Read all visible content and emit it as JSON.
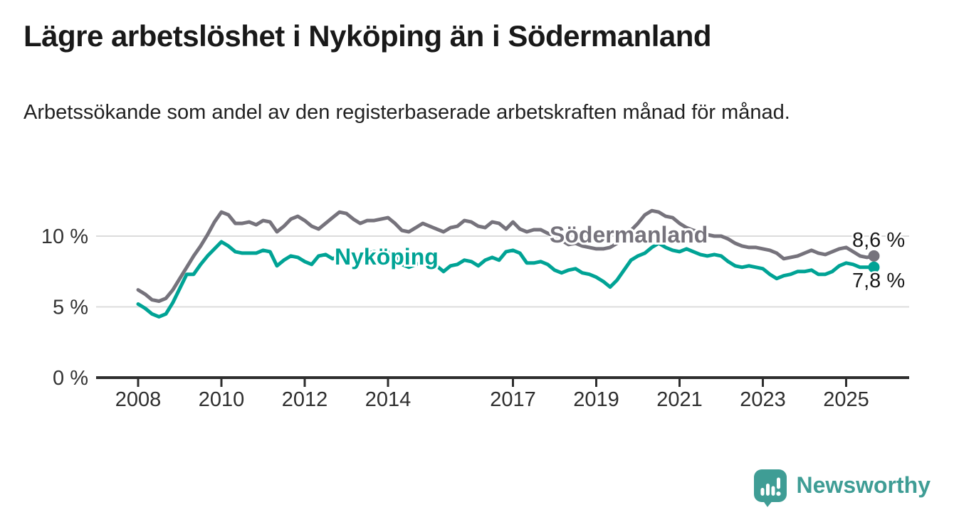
{
  "header": {
    "title": "Lägre arbetslöshet i Nyköping än i Södermanland",
    "subtitle": "Arbetssökande som andel av den registerbaserade arbetskraften månad för månad."
  },
  "branding": {
    "logo_text": "Newsworthy",
    "logo_icon": "bar-chart-speech-bubble-icon",
    "logo_color": "#3f9d95"
  },
  "chart_data": {
    "type": "line",
    "title": "Lägre arbetslöshet i Nyköping än i Södermanland",
    "xlabel": "",
    "ylabel": "",
    "x_unit": "year, monthly observations",
    "x_range": [
      2008.0,
      2025.667
    ],
    "ylim": [
      0,
      12.5
    ],
    "grid": "horizontal",
    "x_tick_years": [
      2008,
      2010,
      2012,
      2014,
      2017,
      2019,
      2021,
      2023,
      2025
    ],
    "x_tick_labels": [
      "2008",
      "2010",
      "2012",
      "2014",
      "2017",
      "2019",
      "2021",
      "2023",
      "2025"
    ],
    "y_tick_values": [
      0,
      5,
      10
    ],
    "y_tick_labels": [
      "0 %",
      "5 %",
      "10 %"
    ],
    "series": [
      {
        "name": "Södermanland",
        "color": "#76737c",
        "x_start": 2008.0,
        "x_step_years": 0.166667,
        "end_value": 8.6,
        "end_label": "8,6 %",
        "values": [
          6.2,
          5.9,
          5.5,
          5.4,
          5.6,
          6.2,
          7.0,
          7.8,
          8.6,
          9.3,
          10.1,
          11.0,
          11.7,
          11.5,
          10.9,
          10.9,
          11.0,
          10.8,
          11.1,
          11.0,
          10.3,
          10.7,
          11.2,
          11.4,
          11.1,
          10.7,
          10.5,
          10.9,
          11.3,
          11.7,
          11.6,
          11.2,
          10.9,
          11.1,
          11.1,
          11.2,
          11.3,
          10.9,
          10.4,
          10.3,
          10.6,
          10.9,
          10.7,
          10.5,
          10.3,
          10.6,
          10.7,
          11.1,
          11.0,
          10.7,
          10.6,
          11.0,
          10.9,
          10.5,
          11.0,
          10.5,
          10.3,
          10.45,
          10.45,
          10.2,
          10.0,
          9.7,
          9.4,
          9.5,
          9.3,
          9.2,
          9.1,
          9.1,
          9.2,
          9.5,
          9.9,
          10.4,
          10.9,
          11.5,
          11.8,
          11.7,
          11.4,
          11.3,
          10.9,
          10.6,
          10.4,
          10.3,
          10.1,
          10.0,
          10.0,
          9.8,
          9.5,
          9.3,
          9.2,
          9.2,
          9.1,
          9.0,
          8.8,
          8.4,
          8.5,
          8.6,
          8.8,
          9.0,
          8.8,
          8.7,
          8.9,
          9.1,
          9.2,
          8.9,
          8.6,
          8.5,
          8.6
        ]
      },
      {
        "name": "Nyköping",
        "color": "#00a395",
        "x_start": 2008.0,
        "x_step_years": 0.166667,
        "end_value": 7.8,
        "end_label": "7,8 %",
        "values": [
          5.2,
          4.9,
          4.5,
          4.3,
          4.5,
          5.3,
          6.3,
          7.3,
          7.3,
          8.0,
          8.6,
          9.1,
          9.6,
          9.3,
          8.9,
          8.8,
          8.8,
          8.8,
          9.0,
          8.9,
          7.9,
          8.3,
          8.6,
          8.5,
          8.2,
          8.0,
          8.6,
          8.7,
          8.4,
          8.6,
          8.8,
          8.6,
          8.5,
          8.8,
          8.9,
          8.8,
          8.9,
          8.6,
          8.0,
          7.8,
          8.0,
          8.1,
          8.0,
          7.9,
          7.5,
          7.9,
          8.0,
          8.3,
          8.2,
          7.9,
          8.3,
          8.5,
          8.3,
          8.9,
          9.0,
          8.8,
          8.1,
          8.1,
          8.2,
          8.0,
          7.6,
          7.4,
          7.6,
          7.7,
          7.4,
          7.3,
          7.1,
          6.8,
          6.4,
          6.9,
          7.6,
          8.3,
          8.6,
          8.8,
          9.2,
          9.5,
          9.2,
          9.0,
          8.9,
          9.1,
          8.9,
          8.7,
          8.6,
          8.7,
          8.6,
          8.2,
          7.9,
          7.8,
          7.9,
          7.8,
          7.7,
          7.3,
          7.0,
          7.2,
          7.3,
          7.5,
          7.5,
          7.6,
          7.3,
          7.3,
          7.5,
          7.9,
          8.1,
          8.0,
          7.8,
          7.8,
          7.8
        ]
      }
    ]
  }
}
